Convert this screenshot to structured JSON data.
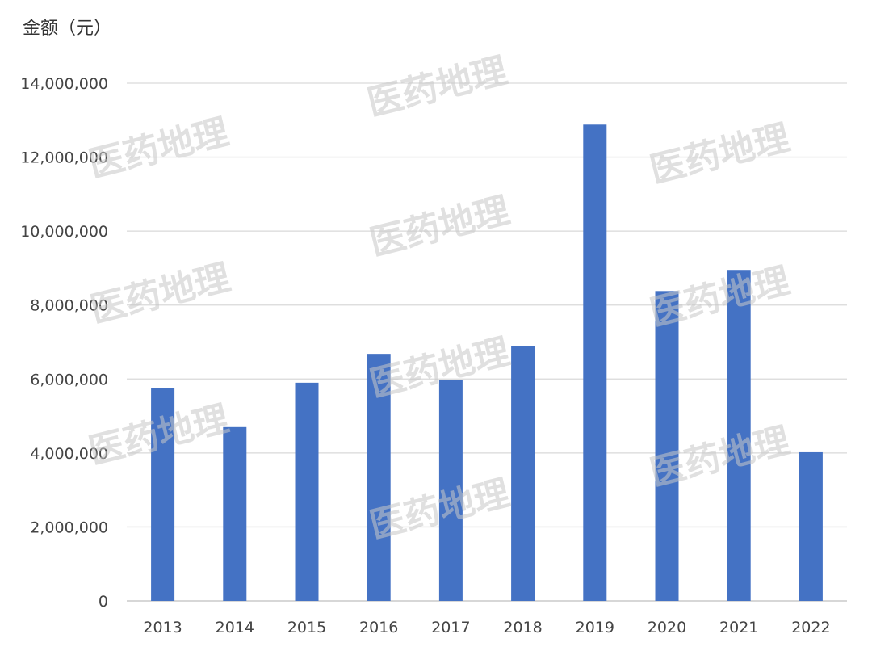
{
  "chart_data": {
    "type": "bar",
    "ylabel": "金额（元）",
    "categories": [
      "2013",
      "2014",
      "2015",
      "2016",
      "2017",
      "2018",
      "2019",
      "2020",
      "2021",
      "2022"
    ],
    "values": [
      5750000,
      4700000,
      5900000,
      6680000,
      5980000,
      6900000,
      12880000,
      8380000,
      8950000,
      4020000
    ],
    "ylim": [
      0,
      14000000
    ],
    "yticks": [
      0,
      2000000,
      4000000,
      6000000,
      8000000,
      10000000,
      12000000,
      14000000
    ],
    "ytick_labels": [
      "0",
      "2,000,000",
      "4,000,000",
      "6,000,000",
      "8,000,000",
      "10,000,000",
      "12,000,000",
      "14,000,000"
    ],
    "grid": true,
    "bar_color": "#4472c4",
    "grid_color": "#d9d9d9"
  },
  "watermark": {
    "text": "医药地理"
  }
}
